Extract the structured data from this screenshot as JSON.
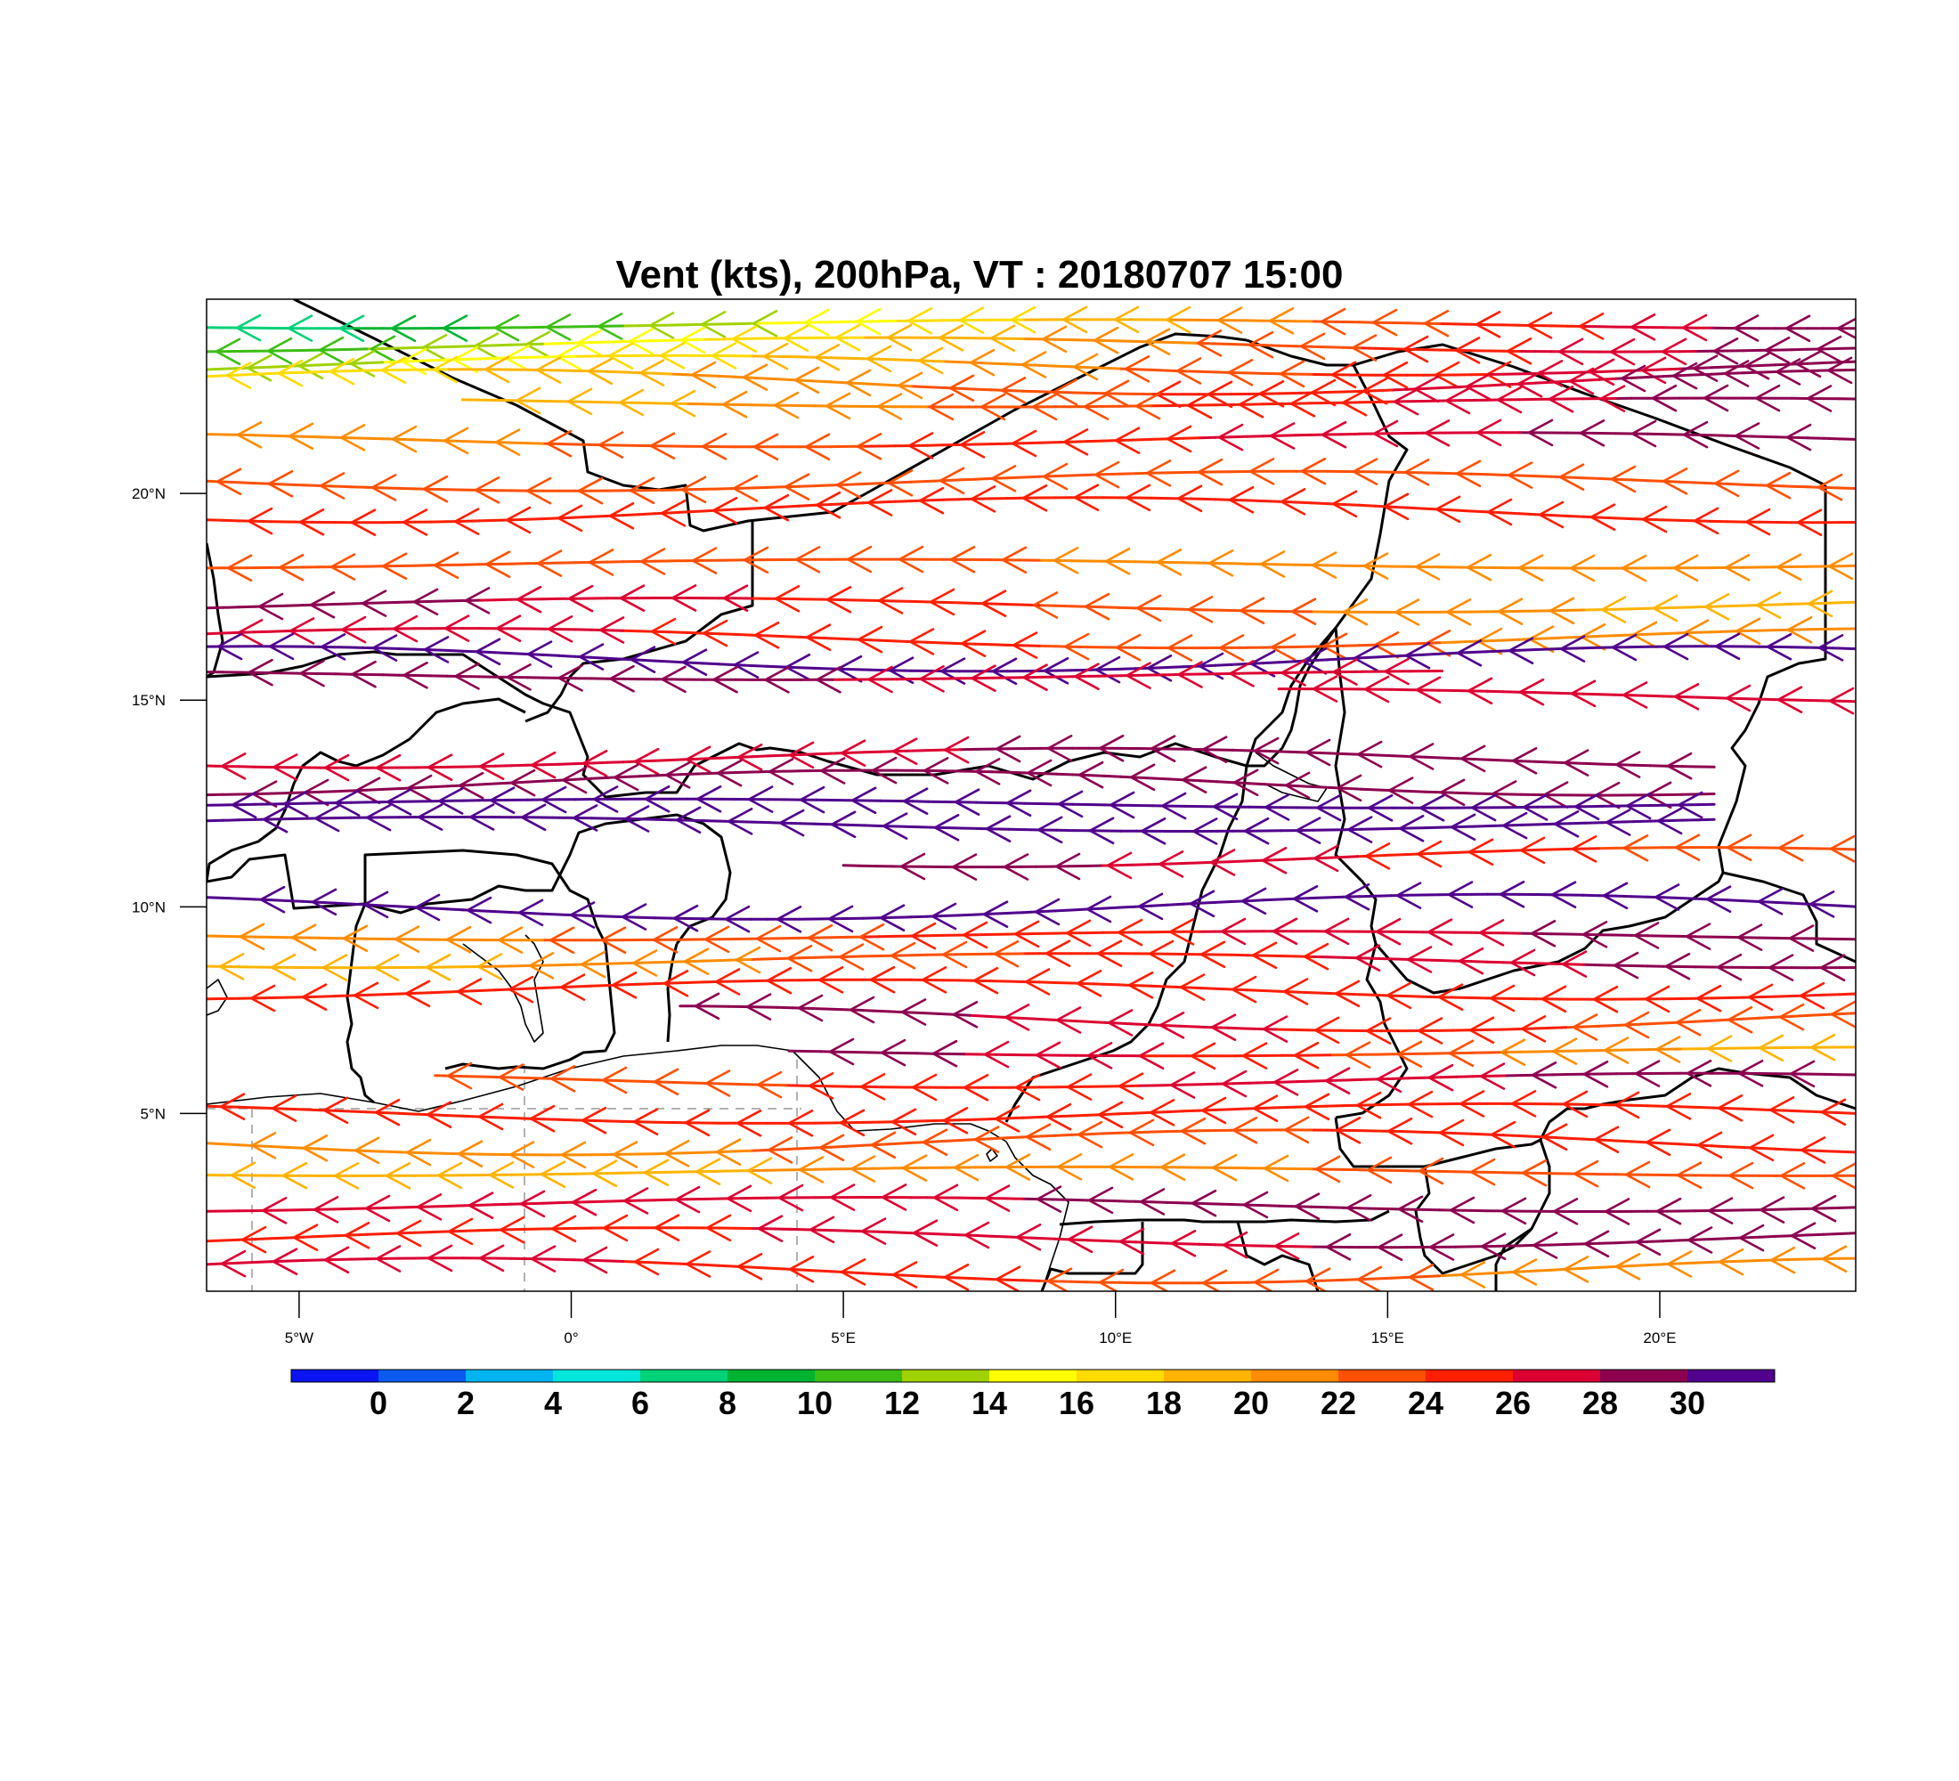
{
  "title": "Vent (kts), 200hPa, VT : 20180707  15:00",
  "map": {
    "lon_range": [
      -6.7,
      23.6
    ],
    "lat_range": [
      0.7,
      24.7
    ],
    "lon_ticks": [
      {
        "value": -5,
        "label": "5°W"
      },
      {
        "value": 0,
        "label": "0°"
      },
      {
        "value": 5,
        "label": "5°E"
      },
      {
        "value": 10,
        "label": "10°E"
      },
      {
        "value": 15,
        "label": "15°E"
      },
      {
        "value": 20,
        "label": "20°E"
      }
    ],
    "lat_ticks": [
      {
        "value": 20,
        "label": "20°N"
      },
      {
        "value": 15,
        "label": "15°N"
      },
      {
        "value": 10,
        "label": "10°N"
      },
      {
        "value": 5,
        "label": "5°N"
      }
    ],
    "flow_direction": "east-to-west"
  },
  "colorbar": {
    "labels": [
      "0",
      "2",
      "4",
      "6",
      "8",
      "10",
      "12",
      "14",
      "16",
      "18",
      "20",
      "22",
      "24",
      "26",
      "28",
      "30"
    ],
    "colors": [
      "#0a14f0",
      "#0a5af0",
      "#00b4f0",
      "#00e6dc",
      "#00d278",
      "#00b432",
      "#3cbe14",
      "#a0d200",
      "#ffff00",
      "#ffdc00",
      "#ffb400",
      "#ff8c00",
      "#ff5000",
      "#ff1e00",
      "#dc0032",
      "#8c0050",
      "#50008c"
    ]
  },
  "streamlines": [
    {
      "lat": 24.1,
      "lon_start": 23.6,
      "lon_end": -6.7,
      "speed_start": 30,
      "speed_end": 6
    },
    {
      "lat": 23.6,
      "lon_start": 23.6,
      "lon_end": -6.7,
      "speed_start": 30,
      "speed_end": 10
    },
    {
      "lat": 23.1,
      "lon_start": 23.6,
      "lon_end": -6.7,
      "speed_start": 30,
      "speed_end": 12
    },
    {
      "lat": 22.7,
      "lon_start": 23.6,
      "lon_end": -6.7,
      "speed_start": 30,
      "speed_end": 16
    },
    {
      "lat": 22.2,
      "lon_start": 23.6,
      "lon_end": -2.0,
      "speed_start": 30,
      "speed_end": 18
    },
    {
      "lat": 21.3,
      "lon_start": 23.6,
      "lon_end": -6.7,
      "speed_start": 30,
      "speed_end": 20
    },
    {
      "lat": 20.3,
      "lon_start": 23.6,
      "lon_end": -6.7,
      "speed_start": 22,
      "speed_end": 24
    },
    {
      "lat": 19.6,
      "lon_start": 23.6,
      "lon_end": -6.7,
      "speed_start": 24,
      "speed_end": 26
    },
    {
      "lat": 18.3,
      "lon_start": 23.6,
      "lon_end": -6.7,
      "speed_start": 20,
      "speed_end": 24
    },
    {
      "lat": 17.3,
      "lon_start": 23.6,
      "lon_end": -6.7,
      "speed_start": 18,
      "speed_end": 30
    },
    {
      "lat": 16.5,
      "lon_start": 23.6,
      "lon_end": -6.7,
      "speed_start": 20,
      "speed_end": 28
    },
    {
      "lat": 16.0,
      "lon_start": 23.6,
      "lon_end": -6.7,
      "speed_start": 30,
      "speed_end": 30
    },
    {
      "lat": 15.6,
      "lon_start": 16.0,
      "lon_end": -6.7,
      "speed_start": 26,
      "speed_end": 30
    },
    {
      "lat": 15.1,
      "lon_start": 23.6,
      "lon_end": 13.0,
      "speed_start": 26,
      "speed_end": 28
    },
    {
      "lat": 13.6,
      "lon_start": 21.0,
      "lon_end": -6.7,
      "speed_start": 30,
      "speed_end": 26
    },
    {
      "lat": 13.0,
      "lon_start": 21.0,
      "lon_end": -6.7,
      "speed_start": 30,
      "speed_end": 28
    },
    {
      "lat": 12.5,
      "lon_start": 21.0,
      "lon_end": -6.7,
      "speed_start": 30,
      "speed_end": 30
    },
    {
      "lat": 12.0,
      "lon_start": 21.0,
      "lon_end": -6.7,
      "speed_start": 30,
      "speed_end": 30
    },
    {
      "lat": 11.2,
      "lon_start": 23.6,
      "lon_end": 5.0,
      "speed_start": 22,
      "speed_end": 30
    },
    {
      "lat": 10.0,
      "lon_start": 23.6,
      "lon_end": -6.7,
      "speed_start": 30,
      "speed_end": 30
    },
    {
      "lat": 9.3,
      "lon_start": 23.6,
      "lon_end": -6.7,
      "speed_start": 30,
      "speed_end": 20
    },
    {
      "lat": 8.7,
      "lon_start": 23.6,
      "lon_end": -6.7,
      "speed_start": 30,
      "speed_end": 18
    },
    {
      "lat": 8.0,
      "lon_start": 23.6,
      "lon_end": -6.7,
      "speed_start": 26,
      "speed_end": 24
    },
    {
      "lat": 7.3,
      "lon_start": 23.6,
      "lon_end": 2.0,
      "speed_start": 22,
      "speed_end": 30
    },
    {
      "lat": 6.5,
      "lon_start": 23.6,
      "lon_end": 4.0,
      "speed_start": 18,
      "speed_end": 30
    },
    {
      "lat": 5.8,
      "lon_start": 23.6,
      "lon_end": -2.5,
      "speed_start": 30,
      "speed_end": 22
    },
    {
      "lat": 5.0,
      "lon_start": 23.6,
      "lon_end": -6.7,
      "speed_start": 24,
      "speed_end": 26
    },
    {
      "lat": 4.3,
      "lon_start": 23.6,
      "lon_end": -6.7,
      "speed_start": 26,
      "speed_end": 20
    },
    {
      "lat": 3.6,
      "lon_start": 23.6,
      "lon_end": -6.7,
      "speed_start": 24,
      "speed_end": 18
    },
    {
      "lat": 2.8,
      "lon_start": 23.6,
      "lon_end": -6.7,
      "speed_start": 30,
      "speed_end": 26
    },
    {
      "lat": 2.0,
      "lon_start": 23.6,
      "lon_end": -6.7,
      "speed_start": 30,
      "speed_end": 24
    },
    {
      "lat": 1.2,
      "lon_start": 23.6,
      "lon_end": -6.7,
      "speed_start": 20,
      "speed_end": 28
    }
  ]
}
